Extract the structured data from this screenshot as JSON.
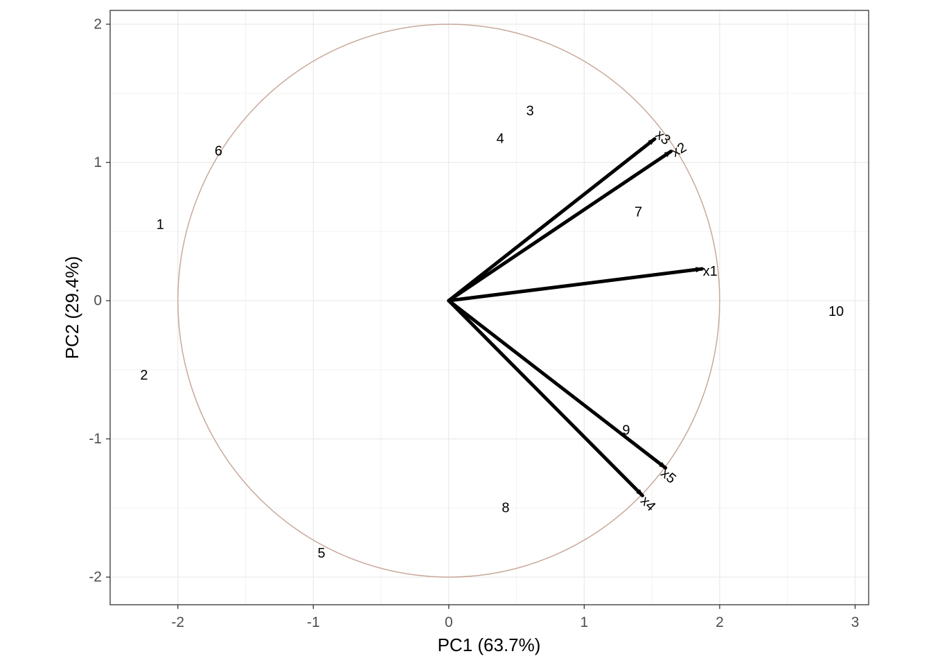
{
  "chart_data": {
    "type": "scatter",
    "subtype": "pca-biplot",
    "xlabel": "PC1 (63.7%)",
    "ylabel": "PC2 (29.4%)",
    "xlim": [
      -2.5,
      3.1
    ],
    "ylim": [
      -2.2,
      2.1
    ],
    "x_ticks": [
      -2,
      -1,
      0,
      1,
      2,
      3
    ],
    "y_ticks": [
      -2,
      -1,
      0,
      1,
      2
    ],
    "x_tick_labels": [
      "-2",
      "-1",
      "0",
      "1",
      "2",
      "3"
    ],
    "y_tick_labels": [
      "-2",
      "-1",
      "0",
      "1",
      "2"
    ],
    "grid": true,
    "theme": "bw",
    "circle": {
      "radius": 2,
      "color": "#c8a89a"
    },
    "observations": [
      {
        "label": "1",
        "x": -2.13,
        "y": 0.55
      },
      {
        "label": "2",
        "x": -2.25,
        "y": -0.54
      },
      {
        "label": "3",
        "x": 0.6,
        "y": 1.37
      },
      {
        "label": "4",
        "x": 0.38,
        "y": 1.17
      },
      {
        "label": "5",
        "x": -0.94,
        "y": -1.83
      },
      {
        "label": "6",
        "x": -1.7,
        "y": 1.08
      },
      {
        "label": "7",
        "x": 1.4,
        "y": 0.64
      },
      {
        "label": "8",
        "x": 0.42,
        "y": -1.5
      },
      {
        "label": "9",
        "x": 1.31,
        "y": -0.94
      },
      {
        "label": "10",
        "x": 2.86,
        "y": -0.08
      }
    ],
    "loadings": [
      {
        "label": "x1",
        "x": 1.87,
        "y": 0.23,
        "lx": 1.93,
        "ly": 0.21,
        "angle": 0
      },
      {
        "label": "x2",
        "x": 1.64,
        "y": 1.08,
        "lx": 1.7,
        "ly": 1.09,
        "angle": -30
      },
      {
        "label": "x3",
        "x": 1.52,
        "y": 1.17,
        "lx": 1.58,
        "ly": 1.18,
        "angle": 40
      },
      {
        "label": "x4",
        "x": 1.43,
        "y": -1.41,
        "lx": 1.47,
        "ly": -1.47,
        "angle": 45
      },
      {
        "label": "x5",
        "x": 1.6,
        "y": -1.21,
        "lx": 1.62,
        "ly": -1.27,
        "angle": 40
      }
    ],
    "arrow_color": "#000000",
    "label_color": "#000000"
  }
}
